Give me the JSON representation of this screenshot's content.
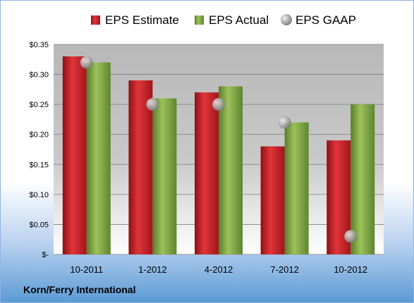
{
  "chart_data": {
    "type": "bar",
    "categories": [
      "10-2011",
      "1-2012",
      "4-2012",
      "7-2012",
      "10-2012"
    ],
    "series": [
      {
        "name": "EPS Estimate",
        "values": [
          0.33,
          0.29,
          0.27,
          0.18,
          0.19
        ],
        "color": "#cc2127"
      },
      {
        "name": "EPS Actual",
        "values": [
          0.32,
          0.26,
          0.28,
          0.22,
          0.25
        ],
        "color": "#7aa03c"
      }
    ],
    "markers": {
      "name": "EPS GAAP",
      "type": "scatter",
      "values": [
        0.32,
        0.25,
        0.25,
        0.22,
        0.03
      ],
      "color": "#b0b0b0"
    },
    "y_ticks": [
      {
        "value": 0,
        "label": "$-"
      },
      {
        "value": 0.05,
        "label": "$0.05"
      },
      {
        "value": 0.1,
        "label": "$0.10"
      },
      {
        "value": 0.15,
        "label": "$0.15"
      },
      {
        "value": 0.2,
        "label": "$0.20"
      },
      {
        "value": 0.25,
        "label": "$0.25"
      },
      {
        "value": 0.3,
        "label": "$0.30"
      },
      {
        "value": 0.35,
        "label": "$0.35"
      }
    ],
    "ylim": [
      0,
      0.35
    ],
    "grid": true,
    "legend_position": "top"
  },
  "company": "Korn/Ferry International"
}
